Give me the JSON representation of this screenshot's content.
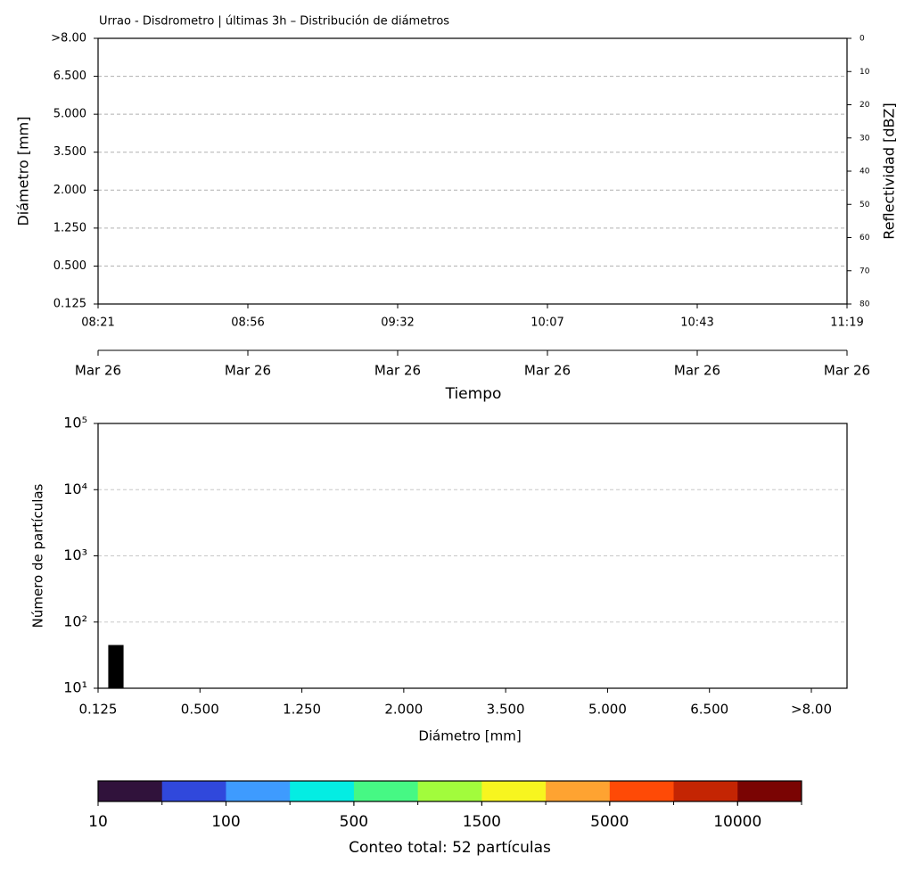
{
  "chart_data": [
    {
      "type": "heatmap",
      "title": "Urrao - Disdrometro | últimas 3h – Distribución de diámetros",
      "ylabel": "Diámetro [mm]",
      "y2label": "Reflectividad [dBZ]",
      "xlabel": "Tiempo",
      "ylim": [
        0,
        7
      ],
      "yticks": [
        {
          "value": 0,
          "label": "0.125"
        },
        {
          "value": 1,
          "label": "0.500"
        },
        {
          "value": 2,
          "label": "1.250"
        },
        {
          "value": 3,
          "label": "2.000"
        },
        {
          "value": 4,
          "label": "3.500"
        },
        {
          "value": 5,
          "label": "5.000"
        },
        {
          "value": 6,
          "label": "6.500"
        },
        {
          "value": 7,
          "label": ">8.00"
        }
      ],
      "y2lim": [
        80,
        0
      ],
      "y2ticks": [
        0,
        10,
        20,
        30,
        40,
        50,
        60,
        70,
        80
      ],
      "xlim": [
        0,
        5
      ],
      "xticks": [
        {
          "value": 0,
          "label": "08:21"
        },
        {
          "value": 1,
          "label": "08:56"
        },
        {
          "value": 2,
          "label": "09:32"
        },
        {
          "value": 3,
          "label": "10:07"
        },
        {
          "value": 4,
          "label": "10:43"
        },
        {
          "value": 5,
          "label": "11:19"
        }
      ],
      "x2ticks": [
        {
          "value": 0,
          "label": "Mar 26"
        },
        {
          "value": 1,
          "label": "Mar 26"
        },
        {
          "value": 2,
          "label": "Mar 26"
        },
        {
          "value": 3,
          "label": "Mar 26"
        },
        {
          "value": 4,
          "label": "Mar 26"
        },
        {
          "value": 5,
          "label": "Mar 26"
        }
      ],
      "grid": true
    },
    {
      "type": "histogram",
      "xlabel": "Diámetro [mm]",
      "ylabel": "Número de partículas",
      "bins": [
        0.1,
        0.25
      ],
      "values": [
        45
      ],
      "color": "#000000",
      "xlim": [
        0,
        7.35
      ],
      "xticks": [
        {
          "value": 0,
          "label": "0.125"
        },
        {
          "value": 1,
          "label": "0.500"
        },
        {
          "value": 2,
          "label": "1.250"
        },
        {
          "value": 3,
          "label": "2.000"
        },
        {
          "value": 4,
          "label": "3.500"
        },
        {
          "value": 5,
          "label": "5.000"
        },
        {
          "value": 6,
          "label": "6.500"
        },
        {
          "value": 7,
          "label": ">8.00"
        }
      ],
      "log_y": true,
      "ylim": [
        10,
        100000
      ],
      "yticks": [
        {
          "value": 10,
          "label": "10¹"
        },
        {
          "value": 100,
          "label": "10²"
        },
        {
          "value": 1000,
          "label": "10³"
        },
        {
          "value": 10000,
          "label": "10⁴"
        },
        {
          "value": 100000,
          "label": "10⁵"
        }
      ],
      "grid": true
    },
    {
      "type": "colorbar",
      "label": "Conteo total: 52 partículas",
      "colors": [
        "#30123b",
        "#3048dc",
        "#3e9bfe",
        "#04ede3",
        "#46f884",
        "#a2fc3c",
        "#f7f51f",
        "#fea331",
        "#fe4a06",
        "#c42503",
        "#7a0403"
      ],
      "xlim": [
        0,
        11
      ],
      "xticks": [
        {
          "value": 0,
          "label": "10"
        },
        {
          "value": 2,
          "label": "100"
        },
        {
          "value": 4,
          "label": "500"
        },
        {
          "value": 6,
          "label": "1500"
        },
        {
          "value": 8,
          "label": "5000"
        },
        {
          "value": 10,
          "label": "10000"
        }
      ]
    }
  ]
}
